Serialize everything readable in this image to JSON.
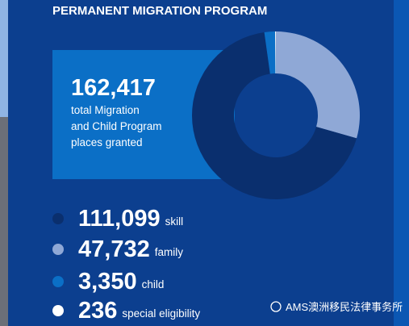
{
  "chart_data": {
    "type": "donut",
    "title": "PERMANENT MIGRATION PROGRAM",
    "total": "162,417",
    "total_label": [
      "total Migration",
      "and Child Program",
      "places granted"
    ],
    "categories": [
      "skill",
      "family",
      "child",
      "special eligibility"
    ],
    "values": [
      111099,
      47732,
      3350,
      236
    ],
    "value_labels": [
      "111,099",
      "47,732",
      "3,350",
      "236"
    ],
    "colors": [
      "#0a2f6e",
      "#8fa8d6",
      "#0b6fc6",
      "#ffffff"
    ],
    "segment_order": [
      1,
      0,
      2,
      3
    ]
  },
  "watermark": "AMS澳洲移民法律事务所"
}
